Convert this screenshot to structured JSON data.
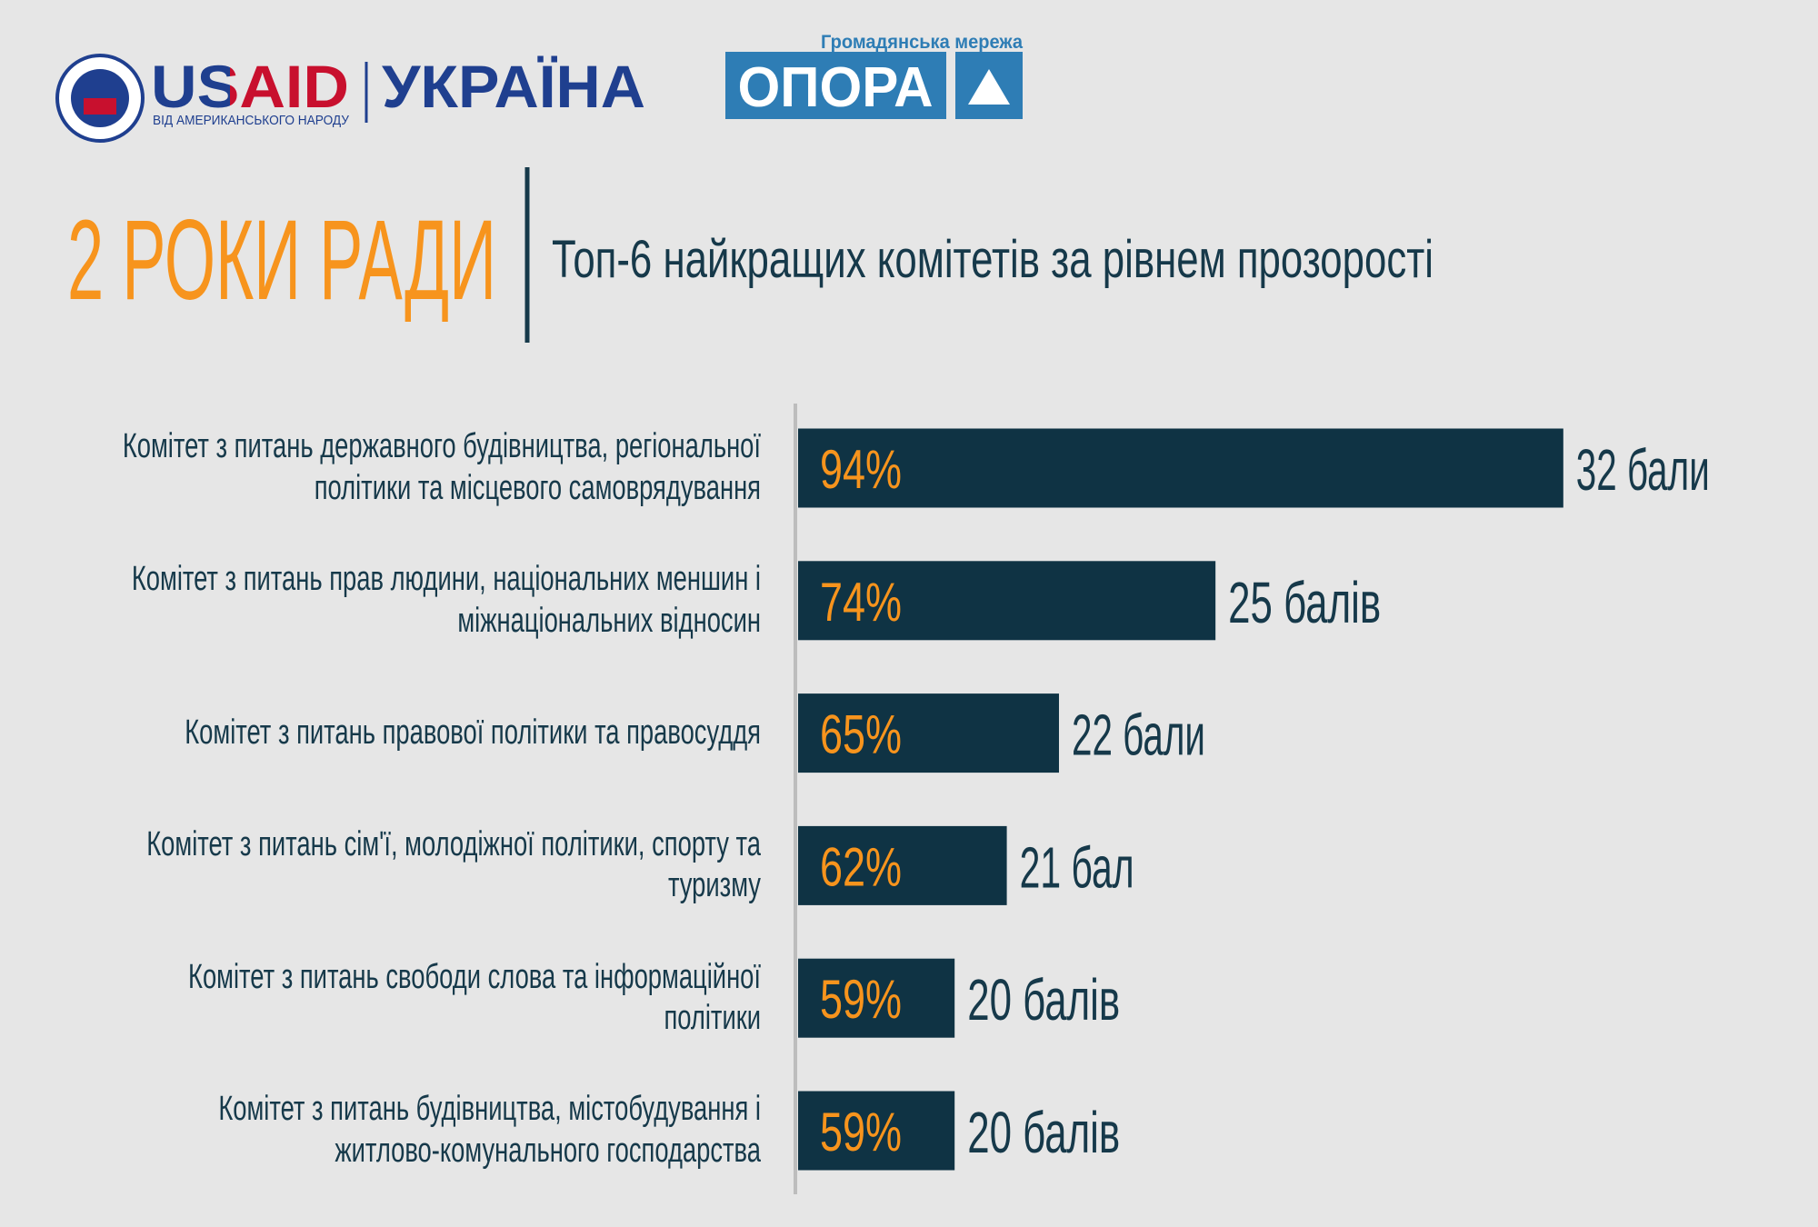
{
  "header": {
    "logo_left": "USAID",
    "logo_left_tagline": "ВІД АМЕРИКАНСЬКОГО НАРОДУ",
    "logo_left_country": "УКРАЇНА",
    "logo_right_caption": "Громадянська мережа",
    "logo_right": "ОПОРА"
  },
  "chart_data": {
    "type": "bar",
    "orientation": "horizontal",
    "title": "2 РОКИ РАДИ",
    "subtitle": "Топ-6 найкращих комітетів за рівнем прозорості",
    "categories": [
      "Комітет з питань державного будівництва, регіональної політики та місцевого самоврядування",
      "Комітет з питань прав людини, національних меншин і міжнаціональних відносин",
      "Комітет з питань правової політики та правосуддя",
      "Комітет з питань сім'ї, молодіжної політики, спорту та туризму",
      "Комітет з питань свободи слова та інформаційної політики",
      "Комітет з питань будівництва, містобудування і житлово-комунального господарства"
    ],
    "values": [
      94,
      74,
      65,
      62,
      59,
      59
    ],
    "value_labels": [
      "94%",
      "74%",
      "65%",
      "62%",
      "59%",
      "59%"
    ],
    "score_labels": [
      "32 бали",
      "25 балів",
      "22 бали",
      "21 бал",
      "20 балів",
      "20 балів"
    ],
    "color": "#0f3344",
    "label_color": "#f7941d",
    "xlim": [
      50,
      100
    ]
  }
}
